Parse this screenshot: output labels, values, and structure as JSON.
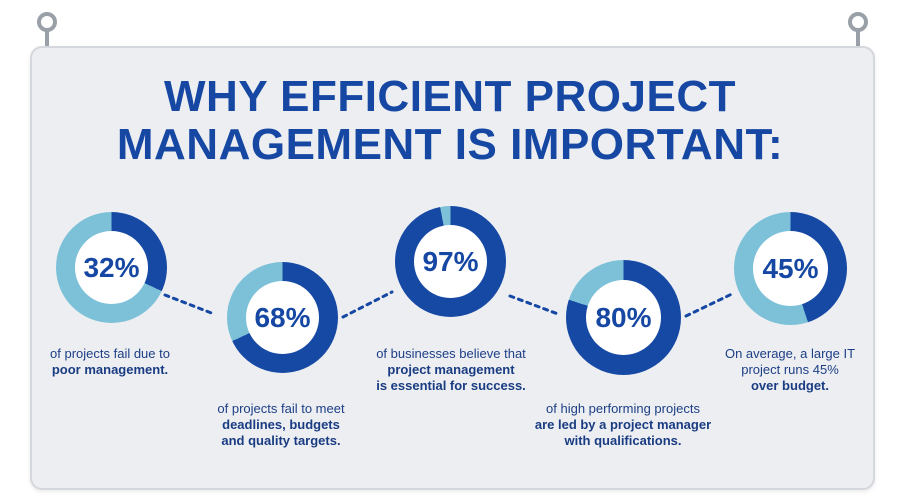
{
  "title": {
    "line1": "WHY EFFICIENT PROJECT",
    "line2": "MANAGEMENT IS IMPORTANT:"
  },
  "colors": {
    "dark": "#1649a4",
    "light": "#7dc1d8",
    "text": "#1547a3",
    "board": "#eceef2"
  },
  "stats": [
    {
      "value": "32%",
      "percent": 32,
      "caption": [
        {
          "text": "of projects fail due to",
          "bold": false
        },
        {
          "text": "poor management.",
          "bold": true
        }
      ]
    },
    {
      "value": "68%",
      "percent": 68,
      "caption": [
        {
          "text": "of projects fail to meet",
          "bold": false
        },
        {
          "text": "deadlines, budgets",
          "bold": true
        },
        {
          "text": "and quality targets.",
          "bold": true
        }
      ]
    },
    {
      "value": "97%",
      "percent": 97,
      "caption": [
        {
          "text": "of businesses believe that",
          "bold": false
        },
        {
          "text": "project management",
          "bold": true
        },
        {
          "text": "is essential for success.",
          "bold": true
        }
      ]
    },
    {
      "value": "80%",
      "percent": 80,
      "caption": [
        {
          "text": "of high performing projects",
          "bold": false
        },
        {
          "text": "are led by a project manager",
          "bold": true
        },
        {
          "text": "with qualifications.",
          "bold": true
        }
      ]
    },
    {
      "value": "45%",
      "percent": 45,
      "caption": [
        {
          "text": "On average, a large IT",
          "bold": false
        },
        {
          "text": "project runs 45%",
          "bold": false
        },
        {
          "text": "over budget.",
          "bold": true
        }
      ]
    }
  ]
}
